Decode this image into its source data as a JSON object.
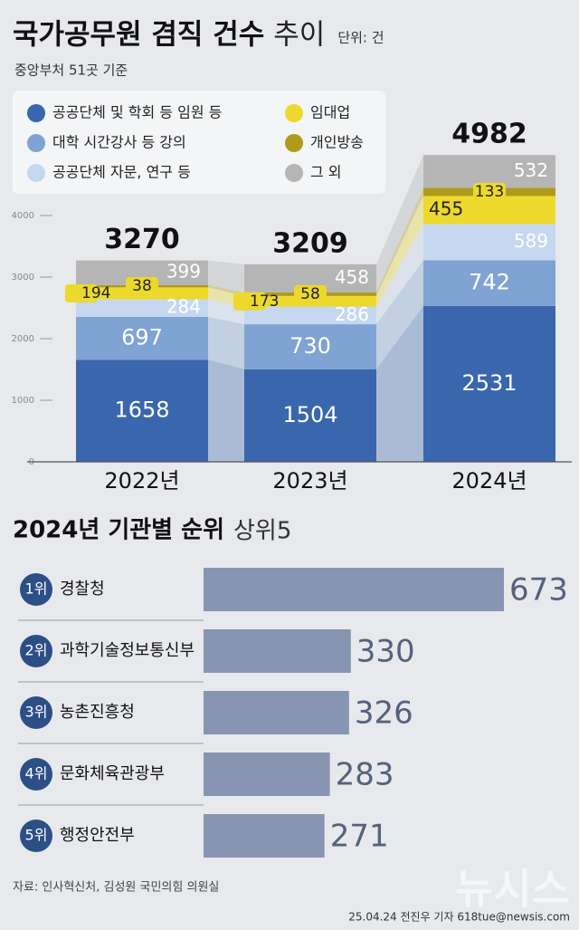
{
  "header": {
    "title": "국가공무원 겸직 건수",
    "title_suffix": "추이",
    "unit": "단위: 건",
    "subtitle": "중앙부처 51곳 기준"
  },
  "chart_data": [
    {
      "type": "stacked-bar",
      "categories": [
        "2022년",
        "2023년",
        "2024년"
      ],
      "series": [
        {
          "name": "공공단체 및 학회 등 임원 등",
          "color": "#3a66ad",
          "values": [
            1658,
            1504,
            2531
          ]
        },
        {
          "name": "대학 시간강사 등 강의",
          "color": "#7fa3d2",
          "values": [
            697,
            730,
            742
          ]
        },
        {
          "name": "공공단체 자문, 연구 등",
          "color": "#c5d8ef",
          "values": [
            284,
            286,
            589
          ]
        },
        {
          "name": "임대업",
          "color": "#ecd92c",
          "values": [
            194,
            173,
            455
          ]
        },
        {
          "name": "개인방송",
          "color": "#b09a1c",
          "values": [
            38,
            58,
            133
          ]
        },
        {
          "name": "그 외",
          "color": "#b5b5b5",
          "values": [
            399,
            458,
            532
          ]
        }
      ],
      "totals": [
        3270,
        3209,
        4982
      ],
      "ylim": [
        0,
        5000
      ],
      "yticks": [
        0,
        1000,
        2000,
        3000,
        4000
      ]
    },
    {
      "type": "hbar",
      "title": "2024년 기관별 순위",
      "subtitle": "상위5",
      "ranks": [
        "1위",
        "2위",
        "3위",
        "4위",
        "5위"
      ],
      "categories": [
        "경찰청",
        "과학기술정보통신부",
        "농촌진흥청",
        "문화체육관광부",
        "행정안전부"
      ],
      "values": [
        673,
        330,
        326,
        283,
        271
      ],
      "color": "#8795b2"
    }
  ],
  "footer": {
    "source": "자료: 인사혁신처, 김성원 국민의힘 의원실",
    "credit": "25.04.24 전진우 기자 618tue@newsis.com",
    "watermark": "뉴시스"
  }
}
